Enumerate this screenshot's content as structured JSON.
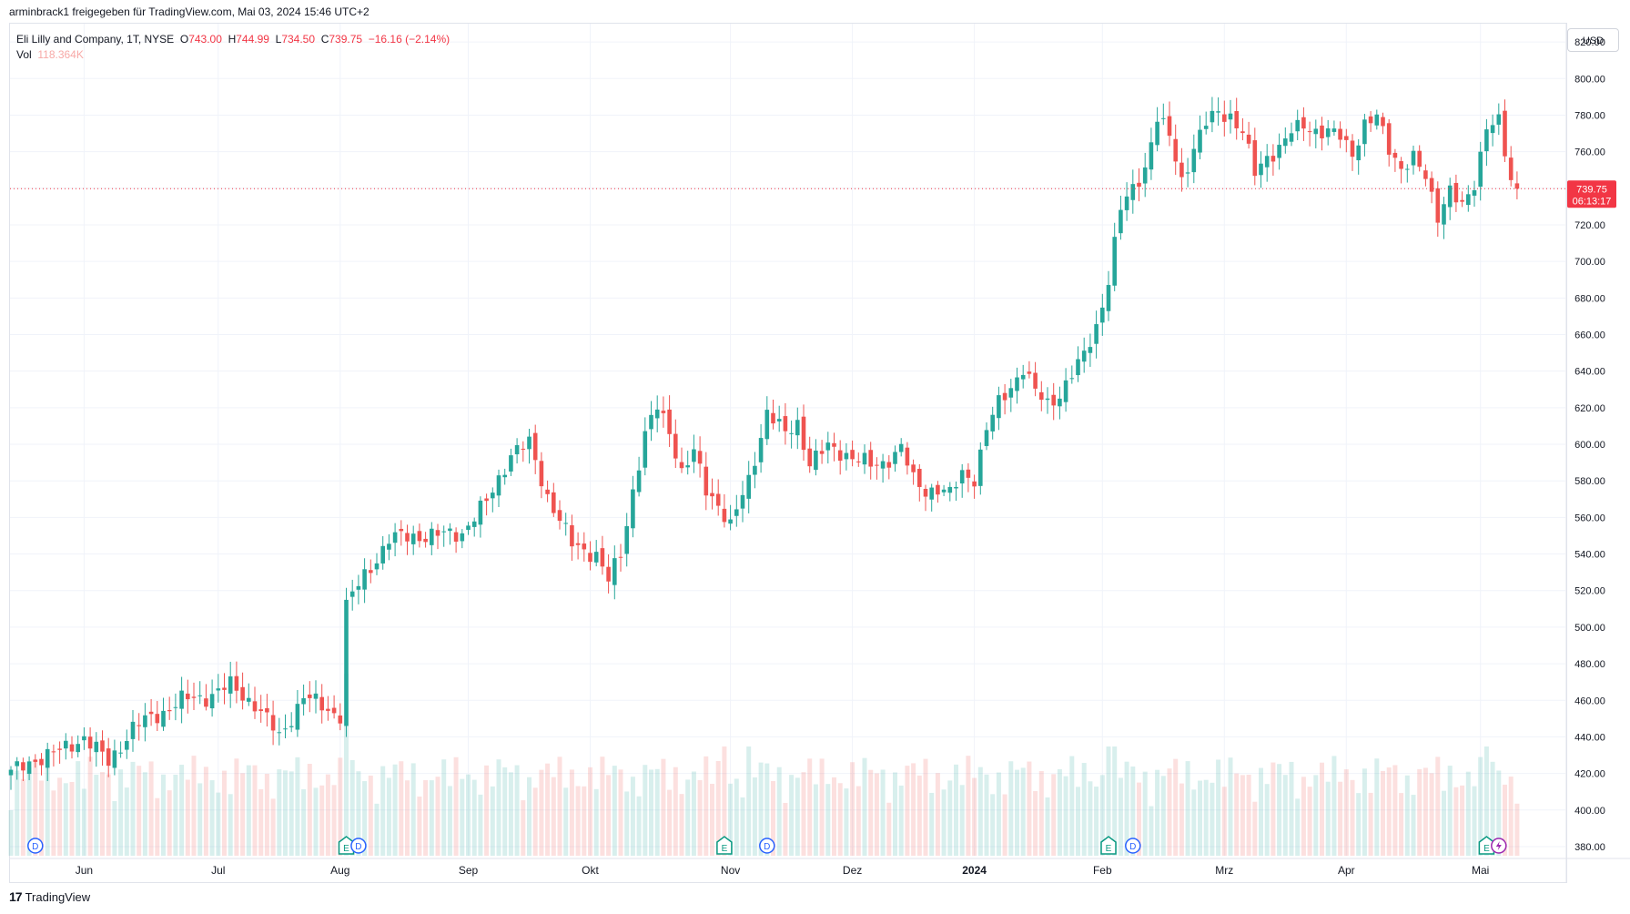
{
  "header": {
    "caption": "arminbrack1 freigegeben für TradingView.com, Mai 03, 2024 15:46 UTC+2"
  },
  "legend": {
    "symbol": "Eli Lilly and Company, 1T, NYSE",
    "o_label": "O",
    "o_value": "743.00",
    "h_label": "H",
    "h_value": "744.99",
    "l_label": "L",
    "l_value": "734.50",
    "c_label": "C",
    "c_value": "739.75",
    "change": "−16.16 (−2.14%)",
    "vol_label": "Vol",
    "vol_value": "118.364K"
  },
  "currency": "USD",
  "price_tag": {
    "price": "739.75",
    "countdown": "06:13:17"
  },
  "footer": {
    "brand": "TradingView"
  },
  "colors": {
    "up": "#26a69a",
    "down": "#ef5350",
    "up_vol": "#26a69a",
    "down_vol": "#ef5350",
    "grid": "#f0f3fa",
    "price_line": "#f23645"
  },
  "chart_data": {
    "type": "candlestick",
    "ylim": [
      375,
      830
    ],
    "y_ticks": [
      "820.00",
      "800.00",
      "780.00",
      "760.00",
      "740.00",
      "720.00",
      "700.00",
      "680.00",
      "660.00",
      "640.00",
      "620.00",
      "600.00",
      "580.00",
      "560.00",
      "540.00",
      "520.00",
      "500.00",
      "480.00",
      "460.00",
      "440.00",
      "420.00",
      "400.00",
      "380.00"
    ],
    "x_ticks": [
      {
        "label": "Jun",
        "bar": 12,
        "bold": false
      },
      {
        "label": "Jul",
        "bar": 34,
        "bold": false
      },
      {
        "label": "Aug",
        "bar": 54,
        "bold": false
      },
      {
        "label": "Sep",
        "bar": 75,
        "bold": false
      },
      {
        "label": "Okt",
        "bar": 95,
        "bold": false
      },
      {
        "label": "Nov",
        "bar": 118,
        "bold": false
      },
      {
        "label": "Dez",
        "bar": 138,
        "bold": false
      },
      {
        "label": "2024",
        "bar": 158,
        "bold": true
      },
      {
        "label": "Feb",
        "bar": 179,
        "bold": false
      },
      {
        "label": "Mrz",
        "bar": 199,
        "bold": false
      },
      {
        "label": "Apr",
        "bar": 219,
        "bold": false
      },
      {
        "label": "Mai",
        "bar": 241,
        "bold": false
      }
    ],
    "current_price": 739.75,
    "bars_total": 248,
    "anchors": [
      [
        0,
        420
      ],
      [
        4,
        428
      ],
      [
        8,
        432
      ],
      [
        12,
        440
      ],
      [
        16,
        426
      ],
      [
        20,
        445
      ],
      [
        24,
        452
      ],
      [
        28,
        460
      ],
      [
        32,
        462
      ],
      [
        36,
        468
      ],
      [
        40,
        458
      ],
      [
        44,
        440
      ],
      [
        48,
        462
      ],
      [
        52,
        455
      ],
      [
        54,
        452
      ],
      [
        55,
        512
      ],
      [
        58,
        528
      ],
      [
        62,
        548
      ],
      [
        66,
        550
      ],
      [
        70,
        550
      ],
      [
        74,
        552
      ],
      [
        78,
        568
      ],
      [
        82,
        595
      ],
      [
        85,
        600
      ],
      [
        88,
        572
      ],
      [
        92,
        545
      ],
      [
        96,
        540
      ],
      [
        98,
        525
      ],
      [
        100,
        540
      ],
      [
        102,
        575
      ],
      [
        104,
        605
      ],
      [
        106,
        620
      ],
      [
        108,
        608
      ],
      [
        110,
        585
      ],
      [
        112,
        595
      ],
      [
        114,
        575
      ],
      [
        116,
        568
      ],
      [
        118,
        555
      ],
      [
        121,
        580
      ],
      [
        124,
        618
      ],
      [
        127,
        605
      ],
      [
        129,
        612
      ],
      [
        131,
        590
      ],
      [
        134,
        598
      ],
      [
        137,
        595
      ],
      [
        141,
        588
      ],
      [
        143,
        590
      ],
      [
        146,
        598
      ],
      [
        148,
        580
      ],
      [
        150,
        575
      ],
      [
        152,
        576
      ],
      [
        154,
        572
      ],
      [
        156,
        584
      ],
      [
        158,
        582
      ],
      [
        160,
        608
      ],
      [
        162,
        622
      ],
      [
        164,
        632
      ],
      [
        166,
        642
      ],
      [
        168,
        628
      ],
      [
        170,
        622
      ],
      [
        172,
        628
      ],
      [
        174,
        638
      ],
      [
        176,
        648
      ],
      [
        178,
        665
      ],
      [
        180,
        690
      ],
      [
        182,
        728
      ],
      [
        184,
        740
      ],
      [
        186,
        752
      ],
      [
        188,
        778
      ],
      [
        190,
        768
      ],
      [
        192,
        745
      ],
      [
        194,
        762
      ],
      [
        196,
        775
      ],
      [
        198,
        782
      ],
      [
        200,
        780
      ],
      [
        202,
        770
      ],
      [
        204,
        748
      ],
      [
        206,
        758
      ],
      [
        208,
        762
      ],
      [
        210,
        770
      ],
      [
        212,
        775
      ],
      [
        214,
        772
      ],
      [
        216,
        770
      ],
      [
        218,
        768
      ],
      [
        220,
        760
      ],
      [
        222,
        775
      ],
      [
        224,
        778
      ],
      [
        226,
        762
      ],
      [
        228,
        752
      ],
      [
        230,
        756
      ],
      [
        232,
        745
      ],
      [
        234,
        726
      ],
      [
        236,
        740
      ],
      [
        238,
        728
      ],
      [
        240,
        742
      ],
      [
        242,
        776
      ],
      [
        244,
        776
      ],
      [
        245,
        758
      ],
      [
        246,
        742
      ],
      [
        247,
        740
      ]
    ],
    "volume_ylim": [
      0,
      1.0
    ],
    "events": [
      {
        "type": "D",
        "bar": 4
      },
      {
        "type": "E",
        "bar": 55
      },
      {
        "type": "D",
        "bar": 57
      },
      {
        "type": "E",
        "bar": 117
      },
      {
        "type": "D",
        "bar": 124
      },
      {
        "type": "E",
        "bar": 180
      },
      {
        "type": "D",
        "bar": 184
      },
      {
        "type": "E",
        "bar": 242
      },
      {
        "type": "S",
        "bar": 244
      }
    ]
  }
}
